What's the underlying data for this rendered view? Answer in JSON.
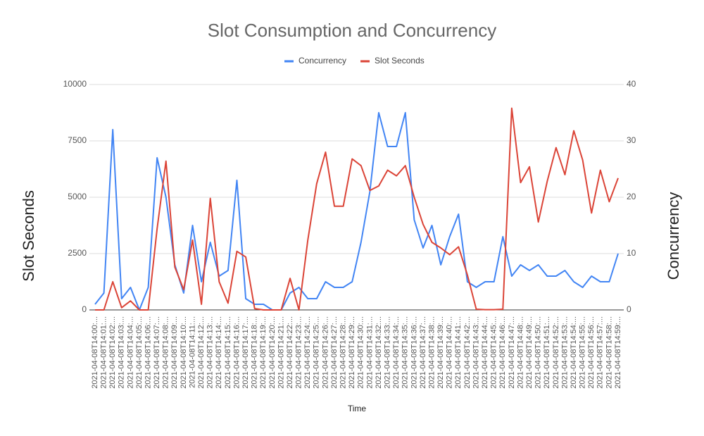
{
  "chart_data": {
    "type": "line",
    "title": "Slot Consumption and Concurrency",
    "x_label": "Time",
    "y_label": "Slot Seconds",
    "y2_label": "Concurrency",
    "categories": [
      "2021-04-08T14:00:...",
      "2021-04-08T14:01:...",
      "2021-04-08T14:02:...",
      "2021-04-08T14:03:...",
      "2021-04-08T14:04:...",
      "2021-04-08T14:05:...",
      "2021-04-08T14:06:...",
      "2021-04-08T14:07:...",
      "2021-04-08T14:08:...",
      "2021-04-08T14:09:...",
      "2021-04-08T14:10:...",
      "2021-04-08T14:11:...",
      "2021-04-08T14:12:...",
      "2021-04-08T14:13:...",
      "2021-04-08T14:14:...",
      "2021-04-08T14:15:...",
      "2021-04-08T14:16:...",
      "2021-04-08T14:17:...",
      "2021-04-08T14:18:...",
      "2021-04-08T14:19:...",
      "2021-04-08T14:20:...",
      "2021-04-08T14:21:...",
      "2021-04-08T14:22:...",
      "2021-04-08T14:23:...",
      "2021-04-08T14:24:...",
      "2021-04-08T14:25:...",
      "2021-04-08T14:26:...",
      "2021-04-08T14:27:...",
      "2021-04-08T14:28:...",
      "2021-04-08T14:29:...",
      "2021-04-08T14:30:...",
      "2021-04-08T14:31:...",
      "2021-04-08T14:32:...",
      "2021-04-08T14:33:...",
      "2021-04-08T14:34:...",
      "2021-04-08T14:35:...",
      "2021-04-08T14:36:...",
      "2021-04-08T14:37:...",
      "2021-04-08T14:38:...",
      "2021-04-08T14:39:...",
      "2021-04-08T14:40:...",
      "2021-04-08T14:41:...",
      "2021-04-08T14:42:...",
      "2021-04-08T14:43:...",
      "2021-04-08T14:44:...",
      "2021-04-08T14:45:...",
      "2021-04-08T14:46:...",
      "2021-04-08T14:47:...",
      "2021-04-08T14:48:...",
      "2021-04-08T14:49:...",
      "2021-04-08T14:50:...",
      "2021-04-08T14:51:...",
      "2021-04-08T14:52:...",
      "2021-04-08T14:53:...",
      "2021-04-08T14:54:...",
      "2021-04-08T14:55:...",
      "2021-04-08T14:56:...",
      "2021-04-08T14:57:...",
      "2021-04-08T14:58:...",
      "2021-04-08T14:59:..."
    ],
    "series": [
      {
        "name": "Concurrency",
        "color": "#4285f4",
        "axis": "y2",
        "values": [
          1,
          3,
          32,
          2,
          4,
          0,
          4,
          27,
          20,
          8,
          3,
          15,
          5,
          12,
          6,
          7,
          23,
          2,
          1,
          1,
          0,
          0,
          3,
          4,
          2,
          2,
          5,
          4,
          4,
          5,
          12,
          21,
          35,
          29,
          29,
          35,
          16,
          11,
          15,
          8,
          13,
          17,
          5,
          4,
          5,
          5,
          13,
          6,
          8,
          7,
          8,
          6,
          6,
          7,
          5,
          4,
          6,
          5,
          5,
          10
        ]
      },
      {
        "name": "Slot Seconds",
        "color": "#db4437",
        "values": [
          0,
          0,
          1250,
          100,
          400,
          0,
          0,
          3600,
          6600,
          1900,
          900,
          3100,
          250,
          4950,
          1250,
          300,
          2600,
          2350,
          60,
          0,
          0,
          0,
          1400,
          0,
          3100,
          5600,
          7000,
          4600,
          4600,
          6700,
          6400,
          5300,
          5500,
          6200,
          5950,
          6400,
          5000,
          3800,
          3000,
          2750,
          2450,
          2800,
          1550,
          30,
          10,
          10,
          30,
          8950,
          5650,
          6350,
          3900,
          5700,
          7200,
          6000,
          7950,
          6650,
          4300,
          6200,
          4800,
          5850
        ]
      }
    ],
    "ylim": [
      0,
      10000
    ],
    "yticks": [
      0,
      2500,
      5000,
      7500,
      10000
    ],
    "y2lim": [
      0,
      40
    ],
    "y2ticks": [
      0,
      10,
      20,
      30,
      40
    ],
    "grid": true,
    "legend": "top"
  }
}
